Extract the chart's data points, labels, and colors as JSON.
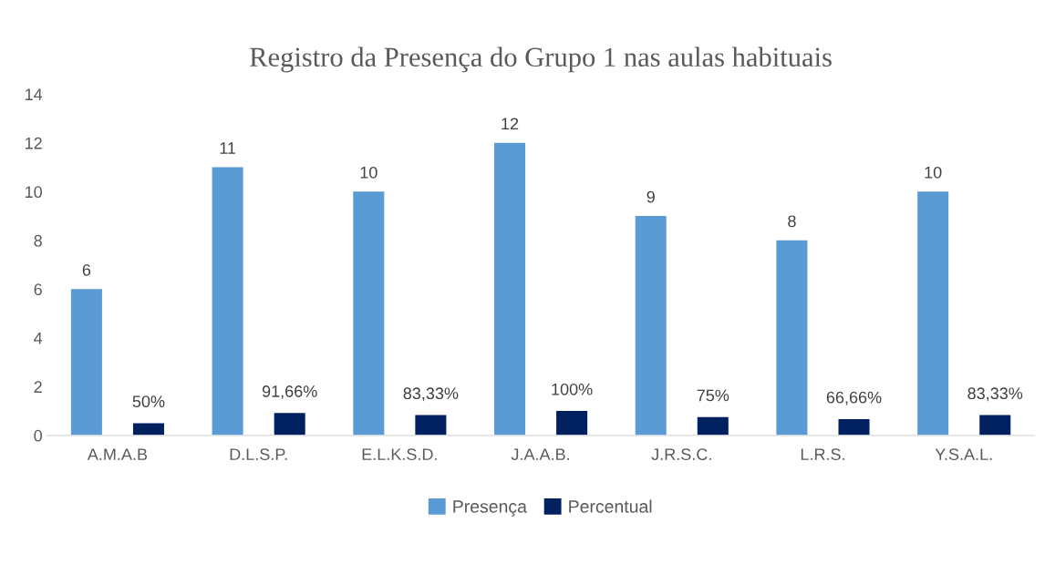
{
  "chart_data": {
    "type": "bar",
    "title": "Registro da Presença do Grupo 1 nas aulas habituais",
    "categories": [
      "A.M.A.B",
      "D.L.S.P.",
      "E.L.K.S.D.",
      "J.A.A.B.",
      "J.R.S.C.",
      "L.R.S.",
      "Y.S.A.L."
    ],
    "series": [
      {
        "name": "Presença",
        "color": "#5b9bd5",
        "values": [
          6,
          11,
          10,
          12,
          9,
          8,
          10
        ],
        "value_labels": [
          "6",
          "11",
          "10",
          "12",
          "9",
          "8",
          "10"
        ]
      },
      {
        "name": "Percentual",
        "color": "#002060",
        "values": [
          0.5,
          0.9166,
          0.8333,
          1,
          0.75,
          0.6666,
          0.8333
        ],
        "value_labels": [
          "50%",
          "91,66%",
          "83,33%",
          "100%",
          "75%",
          "66,66%",
          "83,33%"
        ]
      }
    ],
    "ylim": [
      0,
      14
    ],
    "yticks": [
      0,
      2,
      4,
      6,
      8,
      10,
      12,
      14
    ],
    "grid": false,
    "legend": "bottom"
  }
}
